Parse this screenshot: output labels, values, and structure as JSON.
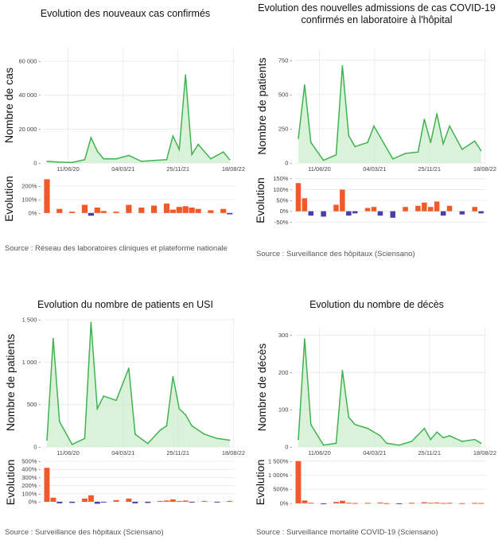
{
  "chart_data": [
    {
      "type": "area",
      "title": "Evolution des nouveaux cas confirmés",
      "ylabel": "Nombre de cas",
      "ylabel2": "Evolution",
      "source": "Source : Réseau des laboratoires cliniques et plateforme nationale",
      "x_ticks": [
        "11/06/20",
        "04/03/21",
        "25/11/21",
        "18/08/22"
      ],
      "y_ticks": [
        "0",
        "20 000",
        "40 000",
        "60 000"
      ],
      "ylim": [
        0,
        68000
      ],
      "evo_ticks": [
        "0%",
        "100%",
        "200%"
      ],
      "evo_lim": [
        -60,
        270
      ],
      "x": [
        "2020-03",
        "2020-05",
        "2020-07",
        "2020-09",
        "2020-10",
        "2020-11",
        "2020-12",
        "2021-02",
        "2021-04",
        "2021-06",
        "2021-08",
        "2021-10",
        "2021-11",
        "2021-12",
        "2022-01",
        "2022-02",
        "2022-03",
        "2022-05",
        "2022-07",
        "2022-08"
      ],
      "values": [
        1000,
        500,
        300,
        2000,
        15000,
        7000,
        2500,
        2500,
        4500,
        1000,
        1500,
        2000,
        16000,
        8000,
        52000,
        5000,
        11000,
        2500,
        6500,
        2000
      ],
      "evolution": [
        250,
        30,
        10,
        60,
        -20,
        40,
        15,
        10,
        60,
        40,
        55,
        70,
        25,
        45,
        50,
        40,
        30,
        20,
        30,
        -10
      ]
    },
    {
      "type": "area",
      "title": "Evolution des nouvelles admissions de cas COVID-19 confirmés en laboratoire à l'hôpital",
      "ylabel": "Nombre de patients",
      "ylabel2": "Evolution",
      "source": "Source : Surveillance des hôpitaux (Sciensano)",
      "x_ticks": [
        "11/06/20",
        "04/03/21",
        "25/11/21",
        "18/08/22"
      ],
      "y_ticks": [
        "0",
        "250",
        "500",
        "750"
      ],
      "ylim": [
        0,
        830
      ],
      "evo_ticks": [
        "-50%",
        "0%",
        "50%",
        "100%",
        "150%"
      ],
      "evo_lim": [
        -60,
        160
      ],
      "x": [
        "2020-03",
        "2020-04",
        "2020-05",
        "2020-07",
        "2020-09",
        "2020-10",
        "2020-11",
        "2020-12",
        "2021-02",
        "2021-03",
        "2021-04",
        "2021-06",
        "2021-08",
        "2021-10",
        "2021-11",
        "2021-12",
        "2022-01",
        "2022-02",
        "2022-03",
        "2022-05",
        "2022-07",
        "2022-08"
      ],
      "values": [
        180,
        570,
        150,
        20,
        60,
        710,
        200,
        120,
        150,
        270,
        190,
        30,
        70,
        80,
        320,
        150,
        360,
        140,
        270,
        100,
        160,
        90
      ],
      "evolution": [
        130,
        60,
        -20,
        -25,
        30,
        100,
        -20,
        -10,
        15,
        20,
        -20,
        -30,
        20,
        25,
        40,
        20,
        45,
        -20,
        25,
        -15,
        20,
        -10
      ]
    },
    {
      "type": "area",
      "title": "Evolution du nombre de patients en USI",
      "ylabel": "Nombre de patients",
      "ylabel2": "Evolution",
      "source": "Source : Surveillance des hôpitaux (Sciensano)",
      "x_ticks": [
        "11/06/20",
        "04/03/21",
        "25/11/21",
        "18/08/22"
      ],
      "y_ticks": [
        "0",
        "500",
        "1 000",
        "1 500"
      ],
      "ylim": [
        0,
        1520
      ],
      "evo_ticks": [
        "0%",
        "100%",
        "200%",
        "300%",
        "400%",
        "500%"
      ],
      "evo_lim": [
        -40,
        520
      ],
      "x": [
        "2020-03",
        "2020-04",
        "2020-05",
        "2020-07",
        "2020-09",
        "2020-10",
        "2020-11",
        "2020-12",
        "2021-02",
        "2021-04",
        "2021-05",
        "2021-07",
        "2021-09",
        "2021-10",
        "2021-11",
        "2021-12",
        "2022-01",
        "2022-02",
        "2022-04",
        "2022-06",
        "2022-08"
      ],
      "values": [
        80,
        1280,
        300,
        30,
        100,
        1470,
        450,
        600,
        550,
        930,
        150,
        40,
        200,
        250,
        830,
        450,
        380,
        250,
        150,
        100,
        80
      ],
      "evolution": [
        420,
        50,
        -20,
        -15,
        40,
        80,
        -25,
        -10,
        20,
        40,
        -20,
        -15,
        10,
        15,
        30,
        10,
        15,
        -10,
        10,
        -5,
        10
      ]
    },
    {
      "type": "area",
      "title": "Evolution du nombre de décès",
      "ylabel": "Nombre de décès",
      "ylabel2": "Evolution",
      "source": "Source : Surveillance mortalité COVID-19 (Sciensano)",
      "x_ticks": [
        "11/06/20",
        "04/03/21",
        "25/11/21",
        "18/08/22"
      ],
      "y_ticks": [
        "0",
        "100",
        "200",
        "300"
      ],
      "ylim": [
        0,
        320
      ],
      "evo_ticks": [
        "0%",
        "500%",
        "1 000%",
        "1 500%"
      ],
      "evo_lim": [
        -60,
        1550
      ],
      "x": [
        "2020-03",
        "2020-04",
        "2020-05",
        "2020-07",
        "2020-09",
        "2020-10",
        "2020-11",
        "2020-12",
        "2021-02",
        "2021-04",
        "2021-05",
        "2021-07",
        "2021-09",
        "2021-11",
        "2021-12",
        "2022-01",
        "2022-02",
        "2022-03",
        "2022-05",
        "2022-07",
        "2022-08"
      ],
      "values": [
        20,
        290,
        60,
        5,
        10,
        205,
        80,
        60,
        50,
        30,
        10,
        5,
        15,
        50,
        20,
        40,
        25,
        30,
        15,
        20,
        10
      ],
      "evolution": [
        1500,
        100,
        20,
        -10,
        50,
        90,
        20,
        10,
        15,
        30,
        5,
        -10,
        20,
        40,
        20,
        30,
        10,
        20,
        5,
        15,
        10
      ]
    }
  ]
}
